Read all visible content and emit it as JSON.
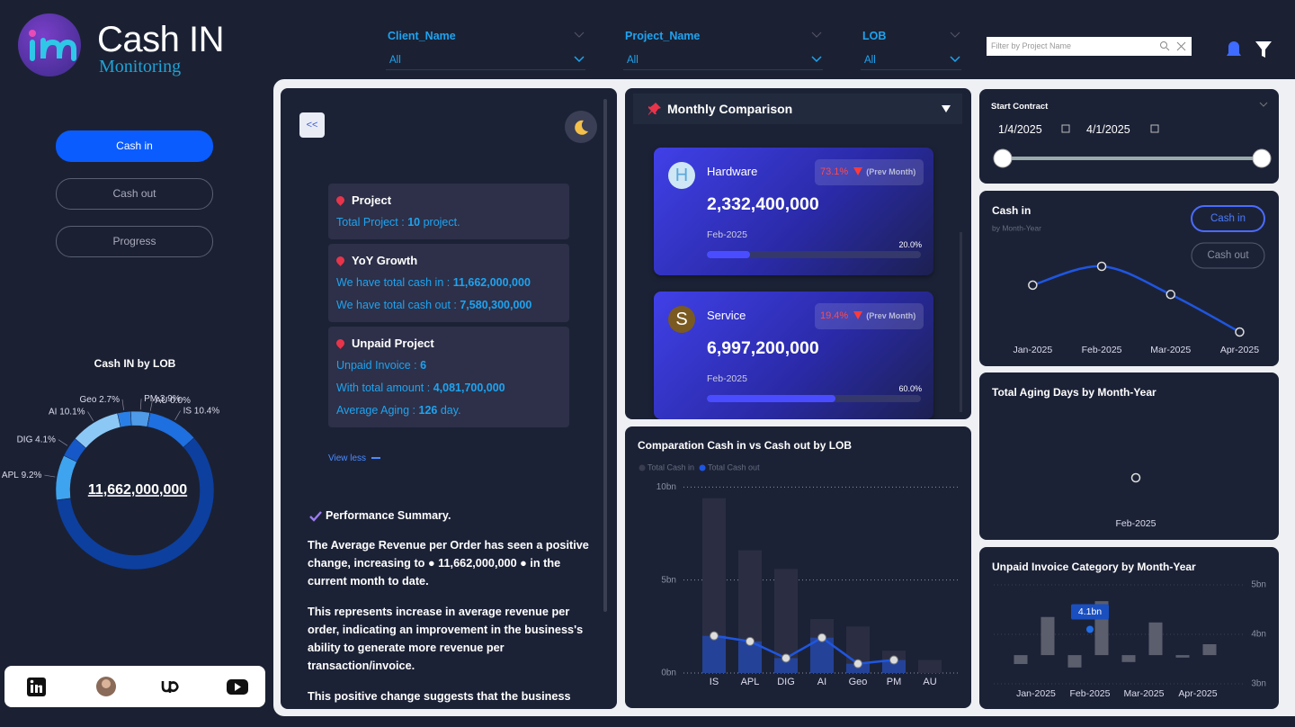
{
  "header": {
    "title": "Cash IN",
    "subtitle": "Monitoring"
  },
  "filters": [
    {
      "label": "Client_Name",
      "value": "All"
    },
    {
      "label": "Project_Name",
      "value": "All"
    },
    {
      "label": "LOB",
      "value": "All"
    }
  ],
  "search_placeholder": "Filter by Project Name",
  "nav": [
    "Cash in",
    "Cash out",
    "Progress"
  ],
  "donut": {
    "type": "pie",
    "title": "Cash IN by LOB",
    "center_label": "11,662,000,000",
    "categories": [
      "IS",
      null,
      "APL",
      "DIG",
      "AI",
      "Geo",
      "PM",
      "AU"
    ],
    "values": [
      10.4,
      59.6,
      9.2,
      4.1,
      10.1,
      2.7,
      3.9,
      0
    ],
    "value_labels": [
      "10.4%",
      null,
      "9.2%",
      "4.1%",
      "10.1%",
      "2.7%",
      "3.9%",
      "0.0%"
    ],
    "colors": [
      "#1e6fe0",
      "#0d3f9e",
      "#3fa4f0",
      "#1658c8",
      "#8cc8f5",
      "#2a7fe6",
      "#4f9be8",
      "#1a3a8a"
    ]
  },
  "summary": {
    "back_button": "<<",
    "cards": [
      {
        "title": "Project",
        "lines": [
          {
            "text": "Total Project : ",
            "value": "10",
            "suffix": " project."
          }
        ]
      },
      {
        "title": "YoY Growth",
        "lines": [
          {
            "text": "We have total cash in : ",
            "value": "11,662,000,000"
          },
          {
            "text": "We have total cash out : ",
            "value": "7,580,300,000"
          }
        ]
      },
      {
        "title": "Unpaid Project",
        "lines": [
          {
            "text": "Unpaid Invoice : ",
            "value": "6"
          },
          {
            "text": "With total amount : ",
            "value": "4,081,700,000"
          },
          {
            "text": "Average Aging : ",
            "value": "126",
            "suffix": " day."
          }
        ]
      }
    ],
    "toggle": "View less",
    "performance": {
      "title": "Performance Summary.",
      "paragraphs": [
        "The Average Revenue per Order has seen a positive change, increasing to ● 11,662,000,000 ● in the current month to date.",
        "This represents increase in average revenue per order, indicating an improvement in the business's ability to generate more revenue per transaction/invoice.",
        "This positive change suggests that the business may"
      ]
    }
  },
  "monthly": {
    "title": "Monthly Comparison",
    "items": [
      {
        "initial": "H",
        "name": "Hardware",
        "change": "73.1%",
        "change_label": "(Prev Month)",
        "amount": "2,332,400,000",
        "period": "Feb-2025",
        "progress": {
          "value": 20,
          "label": "20.0%"
        }
      },
      {
        "initial": "S",
        "name": "Service",
        "change": "19.4%",
        "change_label": "(Prev Month)",
        "amount": "6,997,200,000",
        "period": "Feb-2025",
        "progress": {
          "value": 60,
          "label": "60.0%"
        }
      }
    ]
  },
  "comparison": {
    "type": "bar",
    "title": "Comparation Cash in vs Cash out by LOB",
    "categories": [
      "IS",
      "APL",
      "DIG",
      "AI",
      "Geo",
      "PM",
      "AU"
    ],
    "series": [
      {
        "name": "Total Cash in",
        "color": "#2b2e42",
        "values": [
          9.4,
          6.6,
          5.6,
          2.9,
          2.5,
          1.2,
          0.7
        ]
      },
      {
        "name": "Total Cash out",
        "color": "#1f56e0",
        "values": [
          2.0,
          1.7,
          0.8,
          1.9,
          0.5,
          0.7,
          null
        ]
      }
    ],
    "ylim": [
      0,
      10.5
    ],
    "yticks": [
      {
        "value": 0,
        "label": "0bn"
      },
      {
        "value": 5,
        "label": "5bn"
      },
      {
        "value": 10,
        "label": "10bn"
      }
    ],
    "grid": true
  },
  "date_filter": {
    "title": "Start Contract",
    "start": "1/4/2025",
    "end": "4/1/2025"
  },
  "cash_trend": {
    "type": "line",
    "title": "Cash in",
    "subtitle": "by Month-Year",
    "buttons": [
      "Cash in",
      "Cash out"
    ],
    "categories": [
      "Jan-2025",
      "Feb-2025",
      "Mar-2025",
      "Apr-2025"
    ],
    "values": [
      3.2,
      3.8,
      2.9,
      1.7
    ],
    "color": "#1f56e0"
  },
  "aging": {
    "type": "line",
    "title": "Total Aging Days by Month-Year",
    "categories": [
      "Feb-2025"
    ],
    "values": [
      126
    ]
  },
  "unpaid": {
    "type": "bar",
    "title": "Unpaid Invoice Category by Month-Year",
    "categories": [
      "Jan-2025",
      "Feb-2025",
      "Mar-2025",
      "Apr-2025"
    ],
    "bars": [
      [
        3.4,
        3.58
      ],
      [
        3.58,
        4.35
      ],
      [
        3.33,
        3.58
      ],
      [
        3.58,
        4.67
      ],
      [
        3.44,
        3.58
      ],
      [
        3.58,
        4.24
      ],
      [
        3.53,
        3.58
      ],
      [
        3.58,
        3.8
      ]
    ],
    "color": "#5b5e6c",
    "marker": {
      "values": [
        null,
        4.1,
        null,
        null
      ],
      "value_labels": [
        null,
        "4.1bn",
        null,
        null
      ],
      "color": "#1f6fe8"
    },
    "ylim": [
      3,
      5.1
    ],
    "yticks": [
      {
        "value": 3,
        "label": "3bn"
      },
      {
        "value": 4,
        "label": "4bn"
      },
      {
        "value": 5,
        "label": "5bn"
      }
    ]
  }
}
